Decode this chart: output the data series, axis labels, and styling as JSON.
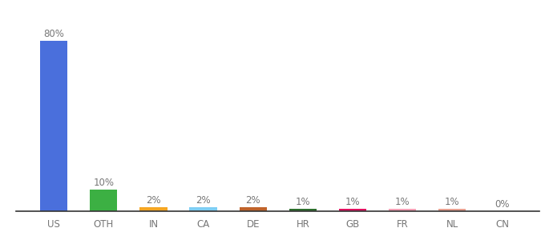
{
  "categories": [
    "US",
    "OTH",
    "IN",
    "CA",
    "DE",
    "HR",
    "GB",
    "FR",
    "NL",
    "CN"
  ],
  "values": [
    80,
    10,
    2,
    2,
    2,
    1,
    1,
    1,
    1,
    0
  ],
  "labels": [
    "80%",
    "10%",
    "2%",
    "2%",
    "2%",
    "1%",
    "1%",
    "1%",
    "1%",
    "0%"
  ],
  "bar_colors": [
    "#4a6fdc",
    "#3cb043",
    "#f5a623",
    "#7ecef4",
    "#c0632a",
    "#2d6e2d",
    "#e0115f",
    "#f4a0b5",
    "#e8a090",
    "#cccccc"
  ],
  "background_color": "#ffffff",
  "label_fontsize": 8.5,
  "tick_fontsize": 8.5,
  "bar_width": 0.55,
  "ylim": [
    0,
    90
  ],
  "figsize": [
    6.8,
    3.0
  ],
  "dpi": 100
}
